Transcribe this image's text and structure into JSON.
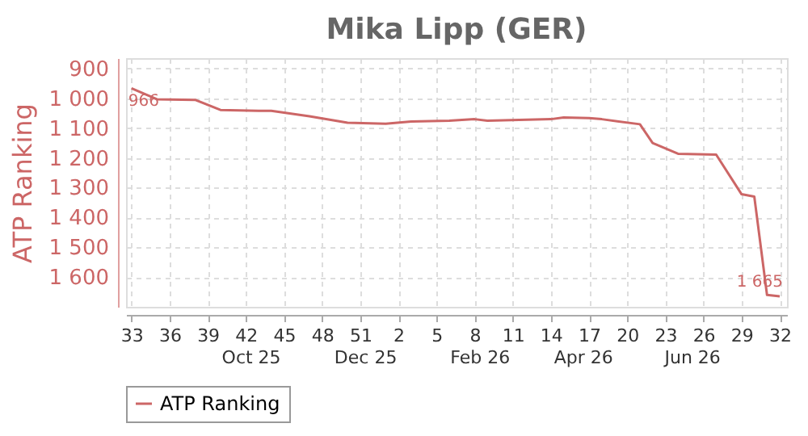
{
  "chart_data": {
    "type": "line",
    "title": "Mika Lipp (GER)",
    "ylabel": "ATP Ranking",
    "x": [
      "2025-08-11",
      "2025-08-25",
      "2025-09-15",
      "2025-09-29",
      "2025-10-20",
      "2025-10-27",
      "2025-11-17",
      "2025-12-08",
      "2025-12-29",
      "2026-01-12",
      "2026-02-02",
      "2026-02-16",
      "2026-02-23",
      "2026-03-30",
      "2026-04-06",
      "2026-04-20",
      "2026-04-27",
      "2026-05-18",
      "2026-05-25",
      "2026-06-08",
      "2026-06-29",
      "2026-07-13",
      "2026-07-20",
      "2026-07-27",
      "2026-08-03"
    ],
    "series": [
      {
        "name": "ATP Ranking",
        "color": "#cc6666",
        "values": [
          966,
          1003,
          1005,
          1039,
          1042,
          1042,
          1060,
          1082,
          1085,
          1078,
          1075,
          1070,
          1075,
          1070,
          1064,
          1066,
          1070,
          1087,
          1150,
          1186,
          1189,
          1322,
          1330,
          1660,
          1665
        ]
      }
    ],
    "xlim": [
      "2025-08-08",
      "2026-08-07"
    ],
    "xticks": [
      {
        "value": "2025-08-11",
        "label": "33"
      },
      {
        "value": "2025-09-01",
        "label": "36"
      },
      {
        "value": "2025-09-22",
        "label": "39"
      },
      {
        "value": "2025-10-13",
        "label": "42"
      },
      {
        "value": "2025-11-03",
        "label": "45"
      },
      {
        "value": "2025-11-24",
        "label": "48"
      },
      {
        "value": "2025-12-15",
        "label": "51"
      },
      {
        "value": "2026-01-05",
        "label": "2"
      },
      {
        "value": "2026-01-26",
        "label": "5"
      },
      {
        "value": "2026-02-16",
        "label": "8"
      },
      {
        "value": "2026-03-09",
        "label": "11"
      },
      {
        "value": "2026-03-30",
        "label": "14"
      },
      {
        "value": "2026-04-20",
        "label": "17"
      },
      {
        "value": "2026-05-11",
        "label": "20"
      },
      {
        "value": "2026-06-01",
        "label": "23"
      },
      {
        "value": "2026-06-22",
        "label": "26"
      },
      {
        "value": "2026-07-13",
        "label": "29"
      },
      {
        "value": "2026-08-03",
        "label": "32"
      }
    ],
    "x2lim": [
      "2025-08-08",
      "2026-08-07"
    ],
    "x2ticks": [
      {
        "value": "2025-10-16",
        "label": "Oct 25"
      },
      {
        "value": "2025-12-18",
        "label": "Dec 25"
      },
      {
        "value": "2026-02-19",
        "label": "Feb 26"
      },
      {
        "value": "2026-04-17",
        "label": "Apr 26"
      },
      {
        "value": "2026-06-16",
        "label": "Jun 26"
      }
    ],
    "ylim": [
      1700,
      865
    ],
    "yticks": [
      900,
      {
        "value": 1000,
        "label": "1 000"
      },
      {
        "value": 1100,
        "label": "1 100"
      },
      {
        "value": 1200,
        "label": "1 200"
      },
      {
        "value": 1300,
        "label": "1 300"
      },
      {
        "value": 1400,
        "label": "1 400"
      },
      {
        "value": 1500,
        "label": "1 500"
      },
      {
        "value": 1600,
        "label": "1 600"
      }
    ],
    "annotations": [
      {
        "text": "966",
        "x": "2025-08-11",
        "y": 966
      },
      {
        "text": "1 665",
        "x": "2026-08-03",
        "y": 1665
      }
    ],
    "grid": true,
    "legend": "bottom",
    "marker": "none",
    "line_style": "solid"
  }
}
